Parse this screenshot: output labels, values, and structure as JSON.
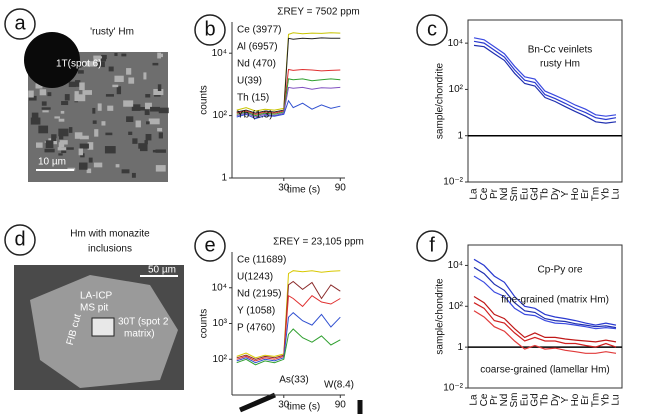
{
  "panels": [
    {
      "label": "a",
      "title": [
        "'rusty' Hm"
      ],
      "texts": [
        "1T(spot 6)",
        "10 µm"
      ]
    },
    {
      "label": "d",
      "title": [
        "Hm with monazite",
        "inclusions"
      ],
      "texts": [
        "50 µm",
        "LA-ICP",
        "MS pit",
        "FIB cut",
        "30T (spot 2",
        "matrix)"
      ]
    }
  ],
  "chart_data": [
    {
      "type": "line",
      "panel_label": "b",
      "title": "ΣREY = 7502 ppm",
      "x_label": "time (s)",
      "y_label": "counts",
      "log_y": true,
      "xlim": [
        -25,
        95
      ],
      "xticks": [
        30,
        90
      ],
      "ylim": [
        1,
        100000
      ],
      "yticks": [
        1,
        {
          "value": 100,
          "label": "10²"
        },
        {
          "value": 10000,
          "label": "10⁴"
        }
      ],
      "x": [
        -20,
        -10,
        0,
        10,
        20,
        30,
        35,
        40,
        50,
        60,
        70,
        80,
        90
      ],
      "series": [
        {
          "name": "Ce (3977)",
          "color": "#c8c400",
          "values": [
            150,
            180,
            140,
            160,
            150,
            170,
            40000,
            45000,
            42000,
            44000,
            43000,
            45000,
            44000
          ]
        },
        {
          "name": "Al (6957)",
          "color": "#222222",
          "values": [
            130,
            150,
            120,
            140,
            130,
            150,
            30000,
            28000,
            30000,
            29000,
            31000,
            30000,
            30000
          ]
        },
        {
          "name": "Nd (470)",
          "color": "#e03030",
          "values": [
            120,
            140,
            110,
            130,
            120,
            140,
            3000,
            2800,
            3000,
            2900,
            2700,
            2800,
            2900
          ]
        },
        {
          "name": "U(39)",
          "color": "#30a030",
          "values": [
            110,
            130,
            100,
            120,
            110,
            130,
            1500,
            1400,
            1500,
            1300,
            1400,
            1500,
            1400
          ]
        },
        {
          "name": "Th (15)",
          "color": "#8050c0",
          "values": [
            100,
            120,
            90,
            110,
            100,
            120,
            800,
            750,
            800,
            700,
            780,
            760,
            800
          ]
        },
        {
          "name": "Yb (1.3)",
          "color": "#3050d0",
          "values": [
            90,
            110,
            80,
            100,
            95,
            110,
            300,
            180,
            250,
            160,
            220,
            170,
            200
          ]
        }
      ]
    },
    {
      "type": "spider",
      "panel_label": "c",
      "y_label": "sample/chondrite",
      "annotations": [
        "Bn-Cc veinlets",
        "rusty Hm"
      ],
      "log_y": true,
      "categories": [
        "La",
        "Ce",
        "Pr",
        "Nd",
        "Sm",
        "Eu",
        "Gd",
        "Tb",
        "Dy",
        "Y",
        "Ho",
        "Er",
        "Tm",
        "Yb",
        "Lu"
      ],
      "ylim": [
        0.01,
        100000
      ],
      "yticks": [
        {
          "value": 0.01,
          "label": "10⁻²"
        },
        1,
        {
          "value": 100,
          "label": "10²"
        },
        {
          "value": 10000,
          "label": "10⁴"
        }
      ],
      "reference_line": 1,
      "series": [
        {
          "color": "#1f2fb0",
          "values": [
            8000,
            7000,
            3500,
            1800,
            500,
            180,
            140,
            45,
            30,
            18,
            11,
            7,
            4,
            3.5,
            4
          ]
        },
        {
          "color": "#2a3ad0",
          "values": [
            12000,
            10000,
            5000,
            2500,
            700,
            250,
            200,
            60,
            40,
            25,
            15,
            10,
            6,
            5,
            6
          ]
        },
        {
          "color": "#3a4ae0",
          "values": [
            17000,
            14000,
            7000,
            3500,
            1000,
            350,
            280,
            85,
            55,
            35,
            21,
            14,
            8,
            7,
            8
          ]
        }
      ]
    },
    {
      "type": "line",
      "panel_label": "e",
      "title": "ΣREY = 23,105 ppm",
      "x_label": "time (s)",
      "y_label": "counts",
      "log_y": true,
      "xlim": [
        -25,
        95
      ],
      "xticks": [
        30,
        90
      ],
      "ylim": [
        10,
        100000
      ],
      "yticks": [
        {
          "value": 100,
          "label": "10²"
        },
        {
          "value": 1000,
          "label": "10³"
        },
        {
          "value": 10000,
          "label": "10⁴"
        }
      ],
      "annotations": [
        "As(33)",
        "W(8.4)"
      ],
      "x": [
        -20,
        -10,
        0,
        10,
        20,
        30,
        35,
        40,
        50,
        60,
        70,
        80,
        90
      ],
      "series": [
        {
          "name": "Ce (11689)",
          "color": "#d8c800",
          "values": [
            120,
            150,
            110,
            130,
            120,
            140,
            25000,
            30000,
            28000,
            30000,
            27000,
            29000,
            30000
          ]
        },
        {
          "name": "U(1243)",
          "color": "#8a2a2a",
          "values": [
            110,
            130,
            100,
            120,
            110,
            130,
            12000,
            15000,
            9000,
            14000,
            5000,
            12000,
            8000
          ]
        },
        {
          "name": "Nd (2195)",
          "color": "#e03030",
          "values": [
            100,
            120,
            90,
            110,
            100,
            120,
            6000,
            5000,
            3000,
            6000,
            4000,
            3500,
            5000
          ]
        },
        {
          "name": "Y (1058)",
          "color": "#3050d0",
          "values": [
            90,
            110,
            80,
            100,
            90,
            110,
            1500,
            2000,
            1200,
            900,
            1800,
            800,
            1500
          ]
        },
        {
          "name": "P (4760)",
          "color": "#30a030",
          "values": [
            80,
            100,
            70,
            90,
            80,
            100,
            500,
            700,
            400,
            300,
            450,
            250,
            350
          ]
        }
      ]
    },
    {
      "type": "spider",
      "panel_label": "f",
      "y_label": "sample/chondrite",
      "annotations": [
        "Cp-Py ore",
        "fine-grained (matrix Hm)",
        "coarse-grained (lamellar Hm)"
      ],
      "log_y": true,
      "categories": [
        "La",
        "Ce",
        "Pr",
        "Nd",
        "Sm",
        "Eu",
        "Gd",
        "Tb",
        "Dy",
        "Y",
        "Ho",
        "Er",
        "Tm",
        "Yb",
        "Lu"
      ],
      "ylim": [
        0.01,
        100000
      ],
      "yticks": [
        {
          "value": 0.01,
          "label": "10⁻²"
        },
        1,
        {
          "value": 100,
          "label": "10²"
        },
        {
          "value": 10000,
          "label": "10⁴"
        }
      ],
      "reference_line": 1,
      "series": [
        {
          "color": "#2a3ad0",
          "values": [
            20000,
            10000,
            3000,
            1500,
            300,
            100,
            80,
            40,
            30,
            25,
            20,
            15,
            12,
            15,
            12
          ]
        },
        {
          "color": "#1f2fb0",
          "values": [
            8000,
            4000,
            1200,
            600,
            150,
            60,
            50,
            25,
            20,
            18,
            14,
            12,
            10,
            11,
            9
          ]
        },
        {
          "color": "#3a4ae0",
          "values": [
            3000,
            1500,
            500,
            300,
            80,
            40,
            35,
            20,
            15,
            14,
            12,
            10,
            8,
            9,
            8
          ]
        },
        {
          "color": "#d02020",
          "values": [
            150,
            80,
            20,
            15,
            5,
            2,
            3,
            2,
            2,
            1.5,
            1.5,
            1.2,
            1,
            1.5,
            1
          ]
        },
        {
          "color": "#e03a3a",
          "values": [
            60,
            30,
            10,
            6,
            2,
            0.8,
            1.2,
            0.8,
            0.9,
            0.7,
            0.6,
            0.5,
            0.5,
            0.6,
            0.5
          ]
        },
        {
          "color": "#c01818",
          "values": [
            300,
            150,
            40,
            25,
            8,
            3,
            5,
            3,
            3,
            2.5,
            2.2,
            2,
            1.8,
            2.2,
            1.8
          ]
        }
      ]
    }
  ]
}
